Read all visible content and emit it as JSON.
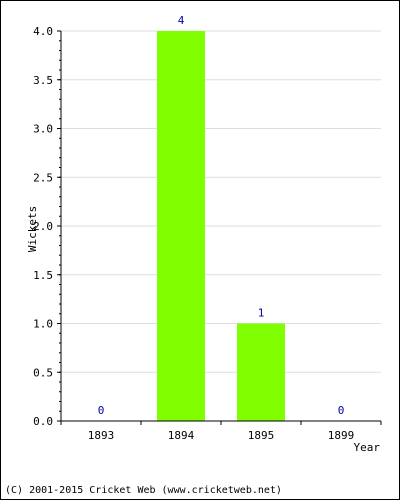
{
  "chart_data": {
    "type": "bar",
    "categories": [
      "1893",
      "1894",
      "1895",
      "1899"
    ],
    "values": [
      0,
      4,
      1,
      0
    ],
    "data_labels": [
      "0",
      "4",
      "1",
      "0"
    ],
    "title": "",
    "xlabel": "Year",
    "ylabel": "Wickets",
    "ylim": [
      0,
      4
    ],
    "yticks": [
      "0.0",
      "0.5",
      "1.0",
      "1.5",
      "2.0",
      "2.5",
      "3.0",
      "3.5",
      "4.0"
    ],
    "grid": "horizontal",
    "bar_color": "#80ff00",
    "label_color": "#0000aa"
  },
  "footer": {
    "credit": "(C) 2001-2015 Cricket Web (www.cricketweb.net)"
  }
}
